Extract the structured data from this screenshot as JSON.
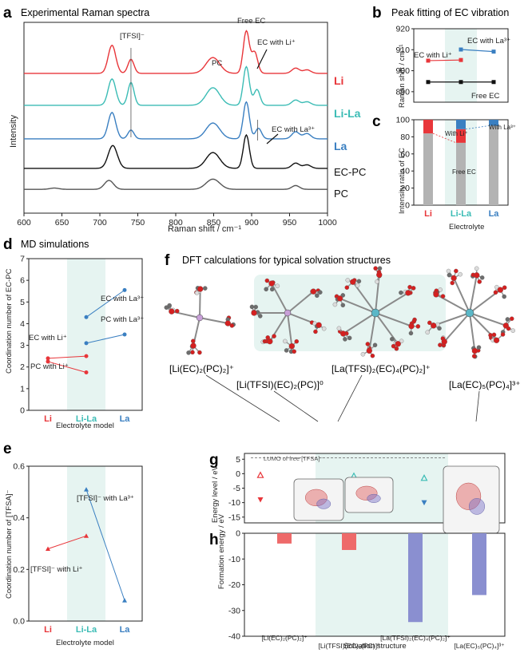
{
  "panels": {
    "a": {
      "letter": "a",
      "title": "Experimental Raman spectra"
    },
    "b": {
      "letter": "b",
      "title": "Peak fitting of EC vibration"
    },
    "c": {
      "letter": "c"
    },
    "d": {
      "letter": "d",
      "title": "MD simulations"
    },
    "e": {
      "letter": "e"
    },
    "f": {
      "letter": "f",
      "title": "DFT calculations for typical solvation structures"
    },
    "g": {
      "letter": "g"
    },
    "h": {
      "letter": "h"
    }
  },
  "colors": {
    "li": "#e8363a",
    "lila": "#3bbcb5",
    "la": "#3a7fc1",
    "ecpc": "#111111",
    "pc": "#555555",
    "band": "#e6f4f1",
    "gray": "#b3b3b3",
    "purple": "#8a8fd0",
    "red_bar": "#ee6a6a",
    "blue_dark": "#2a63b0"
  },
  "chart_data": [
    {
      "id": "a",
      "type": "line",
      "title": "Experimental Raman spectra",
      "xlabel": "Raman shift / cm⁻¹",
      "ylabel": "Intensity",
      "xlim": [
        600,
        1000
      ],
      "xticks": [
        600,
        650,
        700,
        750,
        800,
        850,
        900,
        950,
        1000
      ],
      "series": [
        {
          "name": "Li",
          "color_key": "li",
          "offset": 4,
          "peaks": [
            [
              716,
              1.6,
              5
            ],
            [
              741,
              0.8,
              4
            ],
            [
              849,
              0.9,
              9
            ],
            [
              893,
              2.4,
              4
            ],
            [
              904,
              1.2,
              4
            ],
            [
              958,
              0.3,
              5
            ],
            [
              973,
              0.2,
              5
            ]
          ]
        },
        {
          "name": "Li-La",
          "color_key": "lila",
          "offset": 3,
          "peaks": [
            [
              716,
              1.5,
              5
            ],
            [
              741,
              1.3,
              4
            ],
            [
              849,
              1.0,
              9
            ],
            [
              893,
              2.2,
              4
            ],
            [
              907,
              0.9,
              4
            ],
            [
              958,
              0.3,
              5
            ],
            [
              973,
              0.2,
              5
            ]
          ]
        },
        {
          "name": "La",
          "color_key": "la",
          "offset": 2,
          "peaks": [
            [
              716,
              1.5,
              5
            ],
            [
              741,
              0.5,
              4
            ],
            [
              849,
              0.9,
              9
            ],
            [
              893,
              2.1,
              4
            ],
            [
              909,
              0.6,
              4
            ],
            [
              958,
              0.4,
              5
            ],
            [
              973,
              0.3,
              5
            ]
          ]
        },
        {
          "name": "EC-PC",
          "color_key": "ecpc",
          "offset": 1,
          "peaks": [
            [
              717,
              1.3,
              6
            ],
            [
              849,
              0.9,
              9
            ],
            [
              893,
              1.9,
              4
            ],
            [
              958,
              0.3,
              5
            ],
            [
              973,
              0.2,
              5
            ]
          ]
        },
        {
          "name": "PC",
          "color_key": "pc",
          "offset": 0,
          "peaks": [
            [
              640,
              0.1,
              6
            ],
            [
              712,
              0.7,
              6
            ],
            [
              849,
              0.8,
              9
            ],
            [
              958,
              0.3,
              5
            ]
          ]
        }
      ],
      "annotations": [
        "[TFSI]⁻",
        "PC",
        "Free EC",
        "EC with Li⁺",
        "EC with La³⁺"
      ]
    },
    {
      "id": "b",
      "type": "line",
      "title": "Peak fitting of EC vibration",
      "ylabel": "Raman shift / cm⁻¹",
      "ylim": [
        885,
        920
      ],
      "yticks": [
        890,
        900,
        910,
        920
      ],
      "series": [
        {
          "name": "EC with Li⁺",
          "color_key": "li",
          "x": [
            0,
            1
          ],
          "values": [
            904.8,
            905.1
          ]
        },
        {
          "name": "EC with La³⁺",
          "color_key": "la",
          "x": [
            1,
            2
          ],
          "values": [
            910.1,
            909.1
          ]
        },
        {
          "name": "Free EC",
          "color_key": "ecpc",
          "x": [
            0,
            1,
            2
          ],
          "values": [
            894.6,
            894.6,
            894.6
          ]
        }
      ]
    },
    {
      "id": "c",
      "type": "bar",
      "ylabel": "Intensity ratio of EC",
      "xlabel": "Electrolyte",
      "ylim": [
        0,
        100
      ],
      "yticks": [
        0,
        20,
        40,
        60,
        80,
        100
      ],
      "categories": [
        "Li",
        "Li-La",
        "La"
      ],
      "series": [
        {
          "name": "Free EC",
          "color_key": "gray",
          "values": [
            84,
            73,
            93
          ]
        },
        {
          "name": "With Li⁺",
          "color_key": "li",
          "values": [
            16,
            16,
            0
          ]
        },
        {
          "name": "With La³⁺",
          "color_key": "la",
          "values": [
            0,
            11,
            7
          ]
        }
      ],
      "labels": {
        "with_li": "With Li⁺",
        "with_la": "With La³⁺",
        "free": "Free EC"
      }
    },
    {
      "id": "d",
      "type": "line",
      "ylabel": "Coordination number of EC-PC",
      "xlabel": "Electrolyte model",
      "ylim": [
        0,
        7
      ],
      "yticks": [
        0,
        1,
        2,
        3,
        4,
        5,
        6,
        7
      ],
      "categories": [
        "Li",
        "Li-La",
        "La"
      ],
      "series": [
        {
          "name": "EC with La³⁺",
          "color_key": "la",
          "x": [
            1,
            2
          ],
          "values": [
            4.3,
            5.55
          ]
        },
        {
          "name": "PC with La³⁺",
          "color_key": "la",
          "x": [
            1,
            2
          ],
          "values": [
            3.1,
            3.5
          ]
        },
        {
          "name": "EC with Li⁺",
          "color_key": "li",
          "x": [
            0,
            1
          ],
          "values": [
            2.4,
            2.5
          ]
        },
        {
          "name": "PC with Li⁺",
          "color_key": "li",
          "x": [
            0,
            1
          ],
          "values": [
            2.25,
            1.75
          ]
        }
      ]
    },
    {
      "id": "e",
      "type": "line",
      "ylabel": "Coordination number of [TFSA]⁻",
      "xlabel": "Electrolyte model",
      "ylim": [
        0,
        0.6
      ],
      "yticks": [
        0.0,
        0.2,
        0.4,
        0.6
      ],
      "categories": [
        "Li",
        "Li-La",
        "La"
      ],
      "series": [
        {
          "name": "[TFSI]⁻ with La³⁺",
          "color_key": "la",
          "x": [
            1,
            2
          ],
          "values": [
            0.51,
            0.08
          ]
        },
        {
          "name": "[TFSI]⁻ with Li⁺",
          "color_key": "li",
          "x": [
            0,
            1
          ],
          "values": [
            0.28,
            0.33
          ]
        }
      ]
    },
    {
      "id": "g",
      "type": "scatter",
      "ylabel": "Energy level / eV",
      "ylim": [
        -17,
        7
      ],
      "yticks": [
        5,
        0,
        -5,
        -10,
        -15
      ],
      "lumo_label": "LUMO of free [TFSA]⁻",
      "lumo_value": 5.5,
      "series": [
        {
          "name": "LUMO",
          "values": [
            -0.5,
            -0.8,
            -1.5,
            -0.5
          ]
        },
        {
          "name": "HOMO",
          "values": [
            -9,
            -7.5,
            -10,
            -15
          ]
        }
      ]
    },
    {
      "id": "h",
      "type": "bar",
      "ylabel": "Formation energy / eV",
      "xlabel": "Solvation structure",
      "ylim": [
        -40,
        0
      ],
      "yticks": [
        0,
        -10,
        -20,
        -30,
        -40
      ],
      "categories": [
        "[Li(EC)₂(PC)₂]⁺",
        "[Li(TFSI)(EC)₂(PC)]⁰",
        "[La(TFSI)₂(EC)₄(PC)₂]⁺",
        "[La(EC)₅(PC)₄]³⁺"
      ],
      "values": [
        -4,
        -6.5,
        -34.5,
        -24
      ]
    }
  ],
  "structures": [
    "[Li(EC)₂(PC)₂]⁺",
    "[Li(TFSI)(EC)₂(PC)]⁰",
    "[La(TFSI)₂(EC)₄(PC)₂]⁺",
    "[La(EC)₅(PC)₄]³⁺"
  ]
}
